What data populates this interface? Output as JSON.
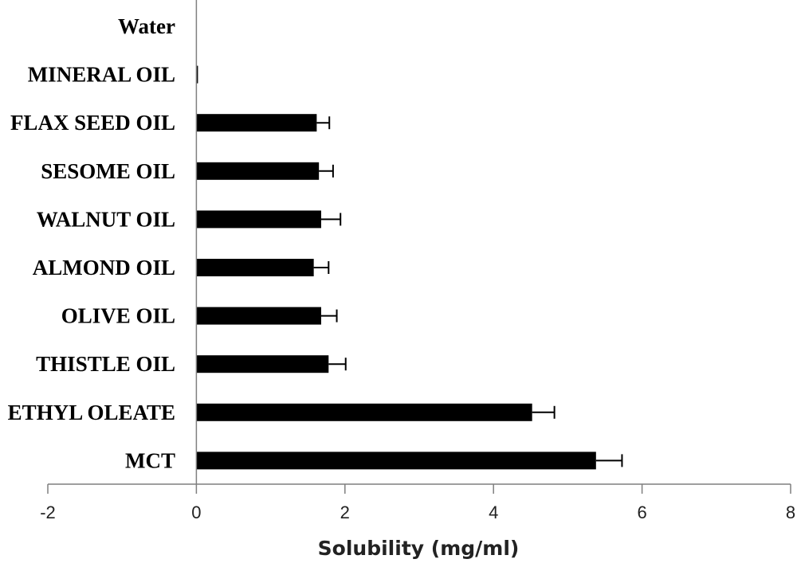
{
  "chart_data": {
    "type": "bar",
    "orientation": "horizontal",
    "categories": [
      "Water",
      "MINERAL OIL",
      "FLAX SEED OIL",
      "SESOME OIL",
      "WALNUT OIL",
      "ALMOND OIL",
      "OLIVE OIL",
      "THISTLE OIL",
      "ETHYL OLEATE",
      "MCT"
    ],
    "values": [
      0,
      0.02,
      1.62,
      1.65,
      1.68,
      1.58,
      1.68,
      1.78,
      4.52,
      5.38
    ],
    "errors": [
      0,
      0.01,
      0.17,
      0.19,
      0.26,
      0.2,
      0.21,
      0.23,
      0.3,
      0.35
    ],
    "title": "",
    "xlabel": "Solubility (mg/ml)",
    "ylabel": "",
    "xlim": [
      -2,
      8
    ],
    "xticks": [
      "-2",
      "0",
      "2",
      "4",
      "6",
      "8"
    ],
    "grid": false,
    "legend": "none",
    "bar_color": "#000000",
    "axis_color": "#7f7f7f"
  }
}
